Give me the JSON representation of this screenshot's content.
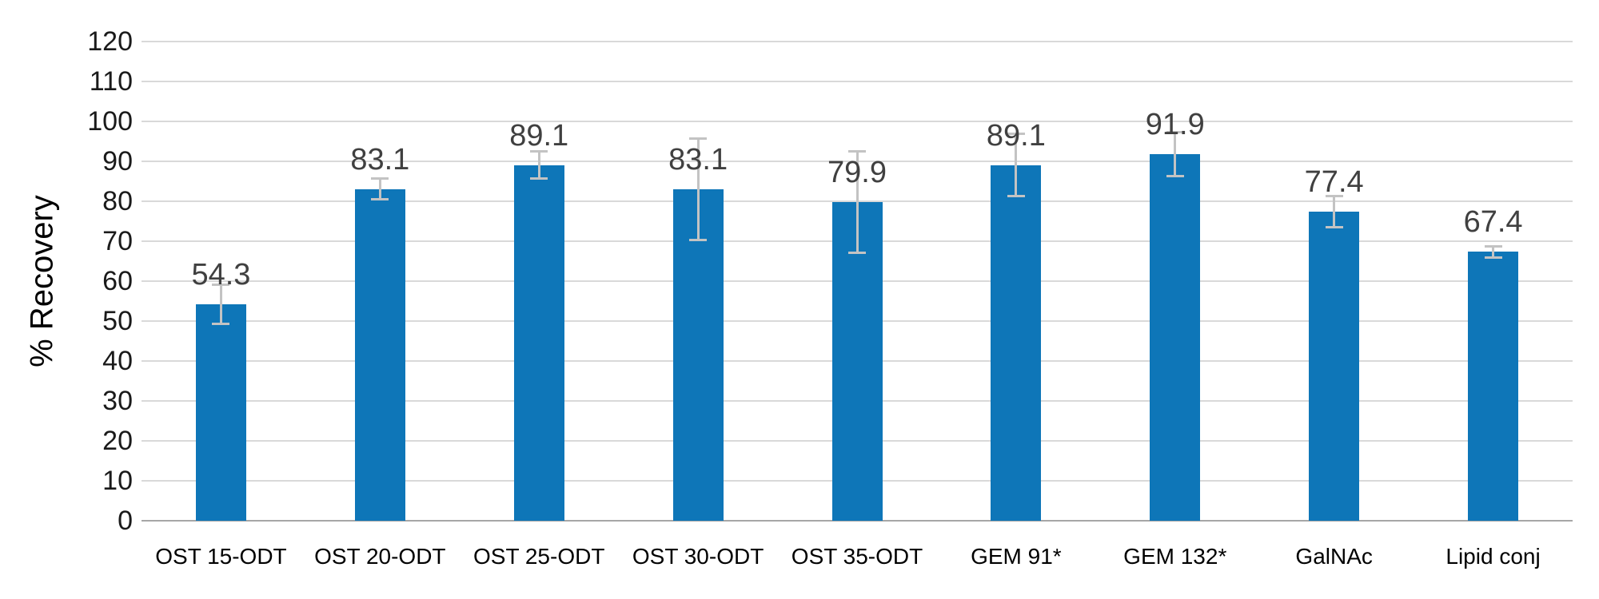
{
  "chart_data": {
    "type": "bar",
    "title": "",
    "xlabel": "",
    "ylabel": "% Recovery",
    "ylim": [
      0,
      120
    ],
    "ytick_step": 10,
    "yticks": [
      0,
      10,
      20,
      30,
      40,
      50,
      60,
      70,
      80,
      90,
      100,
      110,
      120
    ],
    "grid": true,
    "legend": false,
    "categories": [
      "OST 15-ODT",
      "OST 20-ODT",
      "OST 25-ODT",
      "OST 30-ODT",
      "OST 35-ODT",
      "GEM 91*",
      "GEM 132*",
      "GalNAc",
      "Lipid conj"
    ],
    "values": [
      54.3,
      83.1,
      89.1,
      83.1,
      79.9,
      89.1,
      91.9,
      77.4,
      67.4
    ],
    "value_labels": [
      "54.3",
      "83.1",
      "89.1",
      "83.1",
      "79.9",
      "89.1",
      "91.9",
      "77.4",
      "67.4"
    ],
    "errors": [
      4.9,
      2.6,
      3.4,
      12.7,
      12.7,
      7.8,
      5.5,
      3.9,
      1.4
    ],
    "colors": {
      "bar": "#0E76B8",
      "gridline": "#D9D9D9",
      "baseline": "#A6A6A6",
      "error_bar": "#C3C3C3",
      "value_label": "#404040",
      "tick_label": "#1A1A1A",
      "category_label": "#000000"
    }
  }
}
